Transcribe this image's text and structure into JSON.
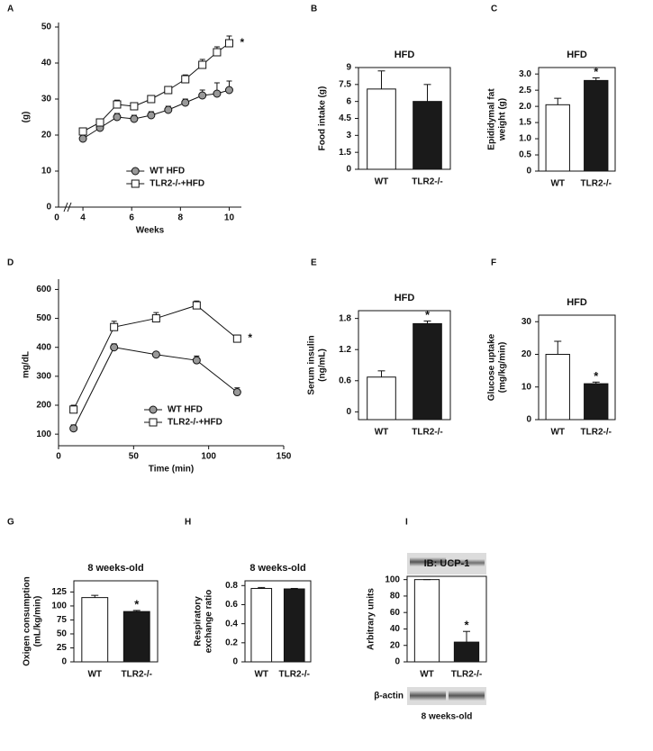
{
  "chart_data": [
    {
      "type": "line",
      "panel": "A",
      "ylabel": [
        "(g)"
      ],
      "xlabel": "Weeks",
      "x_origin_label": "0",
      "axis_break": true,
      "x": [
        4,
        4.7,
        5.4,
        6.1,
        6.8,
        7.5,
        8.2,
        8.9,
        9.5,
        10
      ],
      "series": [
        {
          "name": "WT HFD",
          "color": "#999999",
          "marker": "circle",
          "values": [
            19,
            22,
            25,
            24.5,
            25.5,
            27,
            29,
            31,
            31.5,
            32.5
          ],
          "errors": [
            1,
            1,
            1,
            1,
            1,
            1,
            1,
            1.5,
            3,
            2.5
          ]
        },
        {
          "name": "TLR2-/-+HFD",
          "color": "#ffffff",
          "marker": "square",
          "values": [
            21,
            23.5,
            28.5,
            28,
            30,
            32.5,
            35.5,
            39.5,
            43,
            45.5
          ],
          "errors": [
            1,
            1,
            1.2,
            1,
            1,
            1,
            1.2,
            1.5,
            1.5,
            2
          ]
        }
      ],
      "annotation": "*",
      "xlim": [
        3,
        10.5
      ],
      "xticks": [
        4,
        6,
        8,
        10
      ],
      "ylim": [
        0,
        50
      ],
      "yticks": [
        0,
        10,
        20,
        30,
        40,
        50
      ],
      "legend": "lower right"
    },
    {
      "type": "bar",
      "panel": "B",
      "title": "HFD",
      "ylabel": [
        "Food intake (g)"
      ],
      "categories": [
        "WT",
        "TLR2-/-"
      ],
      "values": [
        7.1,
        6.0
      ],
      "errors": [
        1.6,
        1.5
      ],
      "colors": [
        "#ffffff",
        "#1a1a1a"
      ],
      "value_annotations": [
        null,
        null
      ],
      "ylim": [
        0,
        9
      ],
      "yticks": [
        0,
        1.5,
        3,
        4.5,
        6,
        7.5,
        9
      ]
    },
    {
      "type": "bar",
      "panel": "C",
      "title": "HFD",
      "ylabel": [
        "Epididymal fat",
        "weight (g)"
      ],
      "categories": [
        "WT",
        "TLR2-/-"
      ],
      "values": [
        2.05,
        2.8
      ],
      "errors": [
        0.2,
        0.08
      ],
      "colors": [
        "#ffffff",
        "#1a1a1a"
      ],
      "value_annotations": [
        null,
        "*"
      ],
      "ylim": [
        0,
        3.2
      ],
      "yticks": [
        0,
        0.5,
        {
          "value": 1,
          "label": "1.0"
        },
        1.5,
        {
          "value": 2,
          "label": "2.0"
        },
        2.5,
        {
          "value": 3,
          "label": "3.0"
        }
      ]
    },
    {
      "type": "line",
      "panel": "D",
      "ylabel": [
        "mg/dL"
      ],
      "xlabel": "Time (min)",
      "axis_break": false,
      "x": [
        10,
        37,
        65,
        92,
        119
      ],
      "series": [
        {
          "name": "WT HFD",
          "color": "#999999",
          "marker": "circle",
          "values": [
            120,
            400,
            375,
            355,
            245
          ],
          "errors": [
            12,
            12,
            8,
            15,
            15
          ]
        },
        {
          "name": "TLR2-/-+HFD",
          "color": "#ffffff",
          "marker": "square",
          "values": [
            185,
            470,
            500,
            545,
            430
          ],
          "errors": [
            15,
            20,
            20,
            15,
            12
          ]
        }
      ],
      "annotation": "*",
      "xlim": [
        0,
        150
      ],
      "xticks": [
        0,
        50,
        100,
        150
      ],
      "ylim": [
        60,
        620
      ],
      "yticks": [
        100,
        200,
        300,
        400,
        500,
        600
      ],
      "legend": "lower right"
    },
    {
      "type": "bar",
      "panel": "E",
      "title": "HFD",
      "ylabel": [
        "Serum insulin",
        "(ng/mL)"
      ],
      "categories": [
        "WT",
        "TLR2-/-"
      ],
      "values": [
        0.67,
        1.7
      ],
      "errors": [
        0.12,
        0.05
      ],
      "colors": [
        "#ffffff",
        "#1a1a1a"
      ],
      "value_annotations": [
        null,
        "*"
      ],
      "ylim": [
        -0.15,
        1.95
      ],
      "yticks": [
        0,
        0.6,
        1.2,
        1.8
      ]
    },
    {
      "type": "bar",
      "panel": "F",
      "title": "HFD",
      "ylabel": [
        "Glucose uptake",
        "(mg/kg/min)"
      ],
      "categories": [
        "WT",
        "TLR2-/-"
      ],
      "values": [
        20,
        11
      ],
      "errors": [
        4,
        0.5
      ],
      "colors": [
        "#ffffff",
        "#1a1a1a"
      ],
      "value_annotations": [
        null,
        "*"
      ],
      "ylim": [
        0,
        32
      ],
      "yticks": [
        0,
        10,
        20,
        30
      ]
    },
    {
      "type": "bar",
      "panel": "G",
      "title": "8 weeks-old",
      "ylabel": [
        "Oxigen consumption",
        "(mL/kg/min)"
      ],
      "categories": [
        "WT",
        "TLR2-/-"
      ],
      "values": [
        115,
        90
      ],
      "errors": [
        4,
        2
      ],
      "colors": [
        "#ffffff",
        "#1a1a1a"
      ],
      "value_annotations": [
        null,
        "*"
      ],
      "ylim": [
        0,
        145
      ],
      "yticks": [
        0,
        25,
        50,
        75,
        100,
        125
      ]
    },
    {
      "type": "bar",
      "panel": "H",
      "title": "8 weeks-old",
      "ylabel": [
        "Respiratory",
        "exchange ratio"
      ],
      "categories": [
        "WT",
        "TLR2-/-"
      ],
      "values": [
        0.77,
        0.765
      ],
      "errors": [
        0.01,
        0.005
      ],
      "colors": [
        "#ffffff",
        "#1a1a1a"
      ],
      "value_annotations": [
        null,
        null
      ],
      "ylim": [
        0,
        0.85
      ],
      "yticks": [
        0,
        0.2,
        0.4,
        0.6,
        0.8
      ]
    },
    {
      "type": "bar",
      "panel": "I",
      "title": "IB: UCP-1",
      "ylabel": [
        "Arbitrary units"
      ],
      "categories": [
        "WT",
        "TLR2-/-"
      ],
      "values": [
        100,
        24
      ],
      "errors": [
        0,
        13
      ],
      "colors": [
        "#ffffff",
        "#1a1a1a"
      ],
      "value_annotations": [
        null,
        "*"
      ],
      "ylim": [
        0,
        104
      ],
      "yticks": [
        0,
        20,
        40,
        60,
        80,
        100
      ],
      "loading_label": "β-actin",
      "subtitle": "8 weeks-old"
    }
  ]
}
